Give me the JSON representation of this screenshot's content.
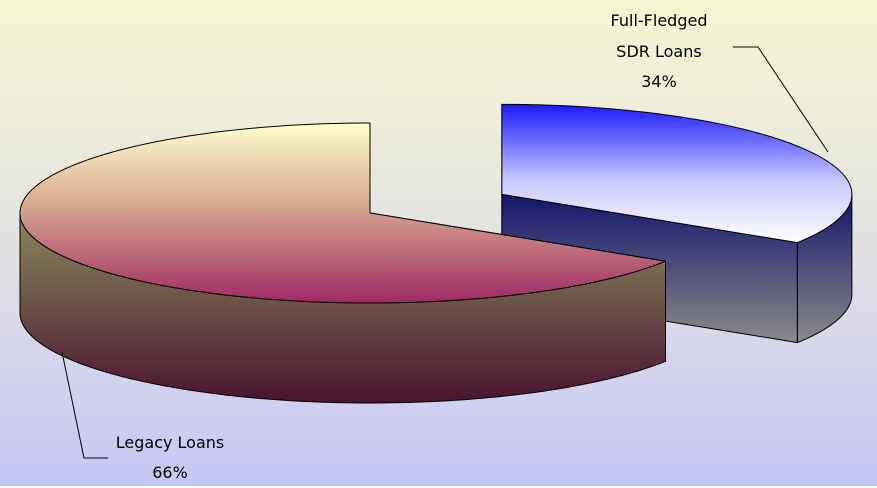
{
  "chart_data": {
    "type": "pie",
    "categories": [
      "Full-Fledged SDR Loans",
      "Legacy Loans"
    ],
    "values": [
      34,
      66
    ],
    "value_labels": [
      "34%",
      "66%"
    ],
    "exploded": [
      true,
      false
    ]
  }
}
